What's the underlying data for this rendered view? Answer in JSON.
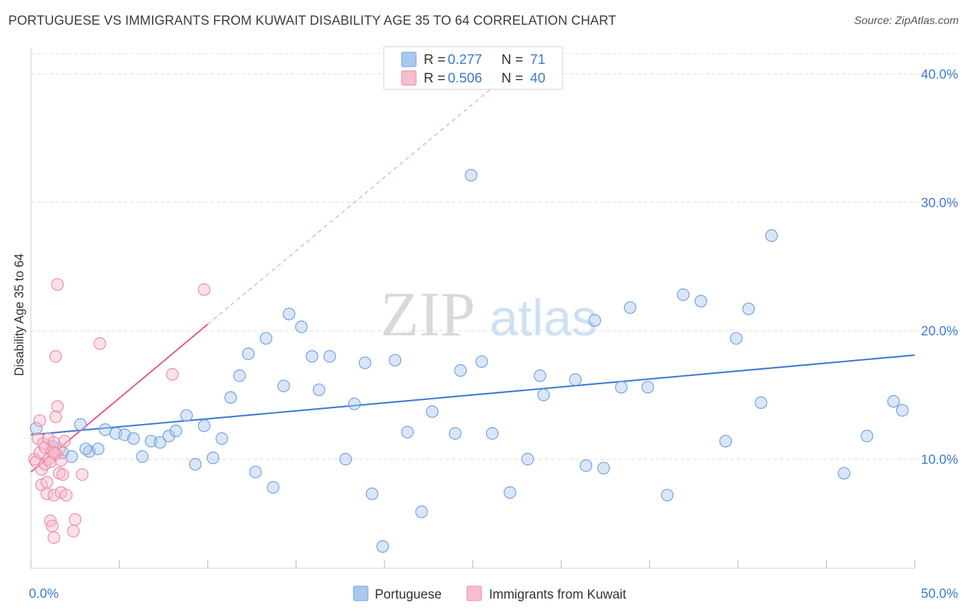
{
  "header": {
    "title": "PORTUGUESE VS IMMIGRANTS FROM KUWAIT DISABILITY AGE 35 TO 64 CORRELATION CHART",
    "source": "Source: ZipAtlas.com"
  },
  "watermark": {
    "zip": "ZIP",
    "atlas": "atlas"
  },
  "legend": {
    "r_label": "R =",
    "n_label": "N =",
    "entries": [
      {
        "r": "0.277",
        "n": "71",
        "color": "#aac8ef",
        "stroke": "#6f9fdd"
      },
      {
        "r": "0.506",
        "n": "40",
        "color": "#f7bccd",
        "stroke": "#e98aa6"
      }
    ]
  },
  "bottom_legend": {
    "items": [
      {
        "label": "Portuguese",
        "color": "#aac8ef",
        "stroke": "#6f9fdd"
      },
      {
        "label": "Immigrants from Kuwait",
        "color": "#f7bccd",
        "stroke": "#e98aa6"
      }
    ]
  },
  "chart_data": {
    "type": "scatter",
    "xlabel": "",
    "ylabel": "Disability Age 35 to 64",
    "xlim": [
      0,
      50
    ],
    "ylim": [
      1.5,
      42
    ],
    "x_tick_labels": [
      {
        "value": 0,
        "label": "0.0%"
      },
      {
        "value": 50,
        "label": "50.0%"
      }
    ],
    "y_tick_labels": [
      {
        "value": 10,
        "label": "10.0%"
      },
      {
        "value": 20,
        "label": "20.0%"
      },
      {
        "value": 30,
        "label": "30.0%"
      },
      {
        "value": 40,
        "label": "40.0%"
      }
    ],
    "x_minor_ticks": [
      0,
      5,
      10,
      15,
      20,
      25,
      30,
      35,
      40,
      45,
      50
    ],
    "grid": "horizontal dashed",
    "colors": {
      "blue": "#3f7ad1",
      "pink": "#e8608e"
    },
    "series": [
      {
        "name": "Portuguese",
        "color": "#aac8ef",
        "stroke": "#6f9fdd",
        "trend": {
          "x": [
            0,
            50
          ],
          "y": [
            11.9,
            18.1
          ],
          "color": "#3f7ad1",
          "dashed": false
        },
        "points": [
          [
            0.3,
            12.4
          ],
          [
            1.2,
            11.0
          ],
          [
            1.8,
            10.5
          ],
          [
            2.3,
            10.2
          ],
          [
            2.8,
            12.7
          ],
          [
            3.3,
            10.6
          ],
          [
            3.8,
            10.8
          ],
          [
            4.2,
            12.3
          ],
          [
            4.8,
            12.0
          ],
          [
            5.3,
            11.9
          ],
          [
            5.8,
            11.6
          ],
          [
            6.3,
            10.2
          ],
          [
            6.8,
            11.4
          ],
          [
            7.3,
            11.3
          ],
          [
            7.8,
            11.8
          ],
          [
            8.2,
            12.2
          ],
          [
            8.8,
            13.4
          ],
          [
            9.3,
            9.6
          ],
          [
            9.8,
            12.6
          ],
          [
            10.3,
            10.1
          ],
          [
            10.8,
            11.6
          ],
          [
            11.3,
            14.8
          ],
          [
            11.8,
            16.5
          ],
          [
            12.3,
            18.2
          ],
          [
            12.7,
            9.0
          ],
          [
            13.3,
            19.4
          ],
          [
            13.7,
            7.8
          ],
          [
            14.3,
            15.7
          ],
          [
            14.6,
            21.3
          ],
          [
            15.3,
            20.3
          ],
          [
            15.9,
            18.0
          ],
          [
            16.3,
            15.4
          ],
          [
            16.9,
            18.0
          ],
          [
            17.8,
            10.0
          ],
          [
            18.3,
            14.3
          ],
          [
            18.9,
            17.5
          ],
          [
            19.3,
            7.3
          ],
          [
            19.9,
            3.2
          ],
          [
            20.6,
            17.7
          ],
          [
            21.3,
            12.1
          ],
          [
            22.1,
            5.9
          ],
          [
            22.7,
            13.7
          ],
          [
            24.3,
            16.9
          ],
          [
            24.9,
            32.1
          ],
          [
            25.5,
            17.6
          ],
          [
            26.1,
            12.0
          ],
          [
            27.1,
            7.4
          ],
          [
            28.1,
            10.0
          ],
          [
            28.8,
            16.5
          ],
          [
            29.0,
            15.0
          ],
          [
            30.8,
            16.2
          ],
          [
            31.4,
            9.5
          ],
          [
            31.9,
            20.8
          ],
          [
            32.4,
            9.3
          ],
          [
            33.4,
            15.6
          ],
          [
            33.9,
            21.8
          ],
          [
            34.9,
            15.6
          ],
          [
            36.0,
            7.2
          ],
          [
            36.9,
            22.8
          ],
          [
            37.9,
            22.3
          ],
          [
            39.3,
            11.4
          ],
          [
            39.9,
            19.4
          ],
          [
            40.6,
            21.7
          ],
          [
            41.3,
            14.4
          ],
          [
            41.9,
            27.4
          ],
          [
            46.0,
            8.9
          ],
          [
            47.3,
            11.8
          ],
          [
            48.8,
            14.5
          ],
          [
            49.3,
            13.8
          ],
          [
            3.1,
            10.8
          ],
          [
            24.0,
            12.0
          ]
        ]
      },
      {
        "name": "Immigrants from Kuwait",
        "color": "#f7bccd",
        "stroke": "#e98aa6",
        "trend": {
          "x": [
            0,
            10
          ],
          "y": [
            9.0,
            20.5
          ],
          "color": "#e8608e",
          "dashed": false
        },
        "trend_ext": {
          "x": [
            10,
            26
          ],
          "y": [
            20.5,
            38.8
          ],
          "color": "#e8a5bb",
          "dashed": true
        },
        "points": [
          [
            0.2,
            10.0
          ],
          [
            0.3,
            9.8
          ],
          [
            0.4,
            11.6
          ],
          [
            0.5,
            13.0
          ],
          [
            0.5,
            10.5
          ],
          [
            0.6,
            9.2
          ],
          [
            0.6,
            8.0
          ],
          [
            0.7,
            11.2
          ],
          [
            0.8,
            10.9
          ],
          [
            0.8,
            9.6
          ],
          [
            0.9,
            8.2
          ],
          [
            0.9,
            7.3
          ],
          [
            1.0,
            11.6
          ],
          [
            1.0,
            10.0
          ],
          [
            1.1,
            9.8
          ],
          [
            1.1,
            5.2
          ],
          [
            1.2,
            10.6
          ],
          [
            1.2,
            4.8
          ],
          [
            1.3,
            7.2
          ],
          [
            1.3,
            3.9
          ],
          [
            1.4,
            18.0
          ],
          [
            1.5,
            14.1
          ],
          [
            1.5,
            23.6
          ],
          [
            1.6,
            10.8
          ],
          [
            1.6,
            8.9
          ],
          [
            1.7,
            7.4
          ],
          [
            1.7,
            9.9
          ],
          [
            1.4,
            10.4
          ],
          [
            1.3,
            11.3
          ],
          [
            1.9,
            11.4
          ],
          [
            1.8,
            8.8
          ],
          [
            1.3,
            10.5
          ],
          [
            1.4,
            13.3
          ],
          [
            2.0,
            7.2
          ],
          [
            2.4,
            4.4
          ],
          [
            2.5,
            5.3
          ],
          [
            2.9,
            8.8
          ],
          [
            3.9,
            19.0
          ],
          [
            8.0,
            16.6
          ],
          [
            9.8,
            23.2
          ]
        ]
      }
    ]
  }
}
